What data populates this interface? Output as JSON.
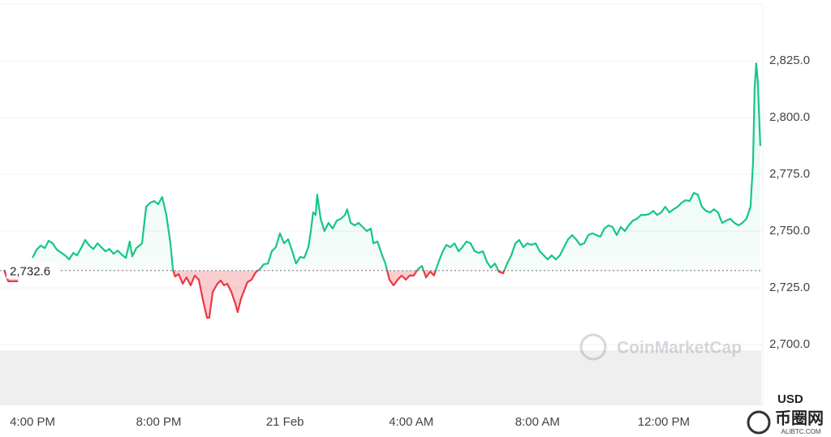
{
  "chart_data": {
    "type": "line",
    "x": [
      -0.9,
      -0.77,
      -0.46,
      null,
      0,
      0.13,
      0.26,
      0.39,
      0.51,
      0.64,
      0.77,
      1.03,
      1.16,
      1.29,
      1.41,
      1.54,
      1.67,
      1.8,
      1.93,
      2.06,
      2.31,
      2.44,
      2.57,
      2.7,
      2.83,
      2.96,
      3.08,
      3.16,
      3.29,
      3.47,
      3.6,
      3.73,
      3.86,
      3.98,
      4.11,
      4.24,
      4.37,
      4.45,
      4.52,
      4.63,
      4.76,
      4.88,
      5.01,
      5.14,
      5.27,
      5.4,
      5.53,
      5.6,
      5.71,
      5.86,
      5.96,
      6.07,
      6.17,
      6.3,
      6.43,
      6.5,
      6.61,
      6.74,
      6.81,
      6.94,
      7.07,
      7.2,
      7.33,
      7.46,
      7.58,
      7.71,
      7.84,
      7.97,
      8.1,
      8.23,
      8.35,
      8.48,
      8.61,
      8.74,
      8.82,
      8.89,
      8.97,
      9.02,
      9.13,
      9.25,
      9.38,
      9.51,
      9.64,
      9.77,
      9.9,
      9.97,
      10.08,
      10.21,
      10.33,
      10.46,
      10.59,
      10.72,
      10.8,
      10.93,
      11.05,
      11.18,
      11.31,
      11.44,
      11.57,
      11.7,
      11.83,
      11.95,
      12.08,
      12.21,
      12.34,
      12.47,
      12.6,
      12.72,
      12.85,
      12.98,
      13.11,
      13.24,
      13.37,
      13.5,
      13.62,
      13.75,
      13.88,
      14.01,
      14.14,
      14.27,
      14.4,
      14.52,
      14.65,
      14.78,
      14.91,
      15.04,
      15.17,
      15.3,
      15.42,
      15.55,
      15.68,
      15.81,
      15.94,
      16.07,
      16.2,
      16.32,
      16.45,
      16.58,
      16.71,
      16.84,
      16.97,
      17.1,
      17.22,
      17.35,
      17.48,
      17.61,
      17.74,
      17.87,
      17.99,
      18.12,
      18.25,
      18.38,
      18.51,
      18.64,
      18.77,
      18.89,
      19.02,
      19.15,
      19.28,
      19.41,
      19.54,
      19.67,
      19.79,
      19.92,
      20.05,
      20.18,
      20.31,
      20.44,
      20.57,
      20.69,
      20.82,
      20.95,
      21.08,
      21.21,
      21.34,
      21.47,
      21.59,
      21.72,
      21.85,
      21.98,
      22.11,
      22.24,
      22.37,
      22.49,
      22.62,
      22.75,
      22.83,
      22.88,
      22.93,
      22.98,
      23.06
    ],
    "values": [
      2732.9,
      2727.9,
      2727.9,
      null,
      2738.2,
      2741.8,
      2743.6,
      2742.5,
      2745.7,
      2744.6,
      2741.8,
      2739.3,
      2737.5,
      2740.4,
      2739.3,
      2742.5,
      2746.1,
      2743.6,
      2742.1,
      2744.6,
      2741.1,
      2742.1,
      2740.0,
      2741.4,
      2739.6,
      2738.2,
      2745.4,
      2738.9,
      2742.5,
      2744.6,
      2760.7,
      2762.5,
      2763.2,
      2761.8,
      2765.0,
      2757.1,
      2744.6,
      2732.9,
      2730.0,
      2731.1,
      2726.8,
      2729.6,
      2726.1,
      2730.4,
      2728.6,
      2719.6,
      2711.8,
      2711.8,
      2723.2,
      2726.8,
      2728.2,
      2726.1,
      2726.8,
      2723.2,
      2717.9,
      2714.3,
      2720.4,
      2725.0,
      2727.5,
      2728.6,
      2731.8,
      2733.2,
      2735.4,
      2735.7,
      2741.1,
      2742.9,
      2749.0,
      2744.6,
      2746.4,
      2741.1,
      2735.7,
      2738.6,
      2738.2,
      2742.9,
      2750.0,
      2758.2,
      2757.1,
      2766.1,
      2755.4,
      2750.0,
      2753.6,
      2751.1,
      2754.6,
      2755.4,
      2757.1,
      2759.6,
      2753.6,
      2752.5,
      2753.6,
      2751.8,
      2750.0,
      2751.1,
      2744.6,
      2745.4,
      2740.4,
      2735.7,
      2728.6,
      2726.1,
      2728.6,
      2730.4,
      2728.6,
      2730.4,
      2730.4,
      2733.2,
      2734.6,
      2729.6,
      2732.1,
      2730.4,
      2735.7,
      2740.4,
      2743.9,
      2742.9,
      2744.6,
      2741.1,
      2742.9,
      2745.4,
      2744.6,
      2741.1,
      2740.4,
      2741.1,
      2736.4,
      2733.9,
      2735.7,
      2732.1,
      2731.4,
      2735.7,
      2739.3,
      2744.6,
      2746.1,
      2742.9,
      2744.6,
      2743.9,
      2744.6,
      2741.1,
      2739.3,
      2737.5,
      2739.3,
      2737.5,
      2739.3,
      2742.9,
      2746.4,
      2748.2,
      2746.4,
      2743.9,
      2744.6,
      2748.2,
      2749.0,
      2748.2,
      2747.5,
      2751.1,
      2752.5,
      2751.8,
      2748.2,
      2751.8,
      2750.0,
      2752.5,
      2754.6,
      2755.4,
      2757.1,
      2757.1,
      2757.5,
      2758.9,
      2757.1,
      2758.2,
      2760.7,
      2758.2,
      2759.6,
      2760.7,
      2762.5,
      2763.6,
      2763.2,
      2766.8,
      2766.1,
      2760.7,
      2758.9,
      2758.2,
      2759.6,
      2758.2,
      2753.6,
      2754.6,
      2755.4,
      2753.6,
      2752.5,
      2753.6,
      2755.4,
      2760.7,
      2780.4,
      2812.5,
      2823.9,
      2816.1,
      2787.5
    ],
    "color": "#16c784",
    "below_color": "#ea3943",
    "baseline": {
      "value": 2732.6,
      "label": "2,732.6"
    },
    "xlim": [
      -1.03,
      23.14
    ],
    "xticks": [
      {
        "value": 0,
        "label": "4:00 PM"
      },
      {
        "value": 4,
        "label": "8:00 PM"
      },
      {
        "value": 8,
        "label": "21 Feb"
      },
      {
        "value": 12,
        "label": "4:00 AM"
      },
      {
        "value": 16,
        "label": "8:00 AM"
      },
      {
        "value": 20,
        "label": "12:00 PM"
      }
    ],
    "ylim": [
      2680,
      2850
    ],
    "yticks": [
      {
        "value": 2700,
        "label": "2,700.0"
      },
      {
        "value": 2725,
        "label": "2,725.0"
      },
      {
        "value": 2750,
        "label": "2,750.0"
      },
      {
        "value": 2775,
        "label": "2,775.0"
      },
      {
        "value": 2800,
        "label": "2,800.0"
      },
      {
        "value": 2825,
        "label": "2,825.0"
      }
    ],
    "grid": true,
    "currency": "USD",
    "watermark": "CoinMarketCap",
    "site_name": "币圈网",
    "site_url": "ALIBTC.COM"
  }
}
